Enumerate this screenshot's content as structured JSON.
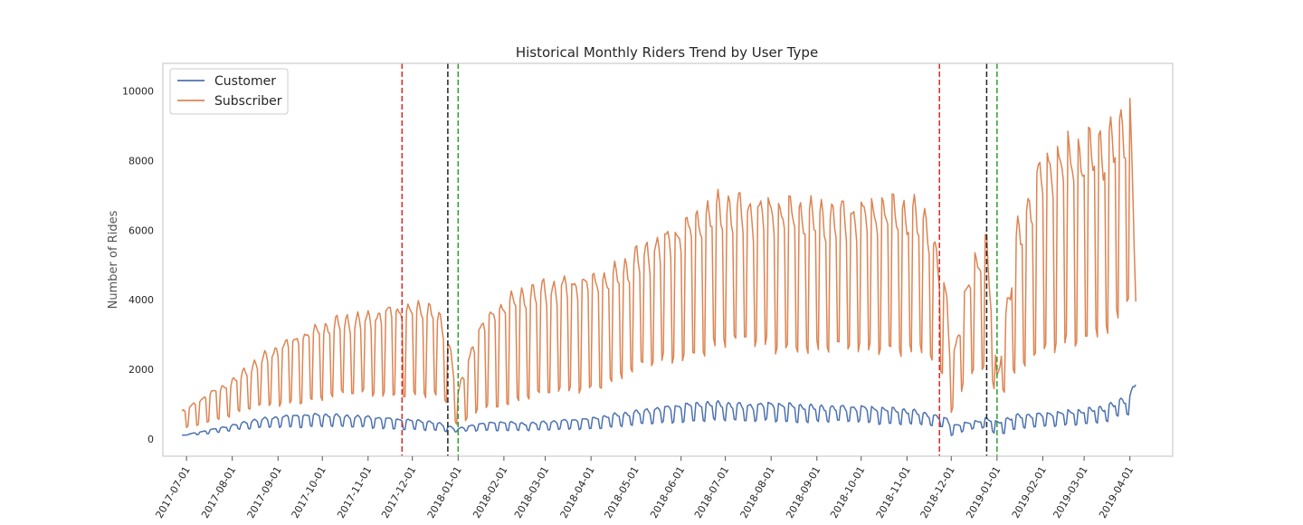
{
  "chart_data": {
    "type": "line",
    "title": "Historical Monthly Riders Trend by User Type",
    "xlabel": "",
    "ylabel": "Number of Rides",
    "x_range": [
      "2017-06-15",
      "2019-04-30"
    ],
    "ylim": [
      -500,
      10800
    ],
    "y_ticks": [
      0,
      2000,
      4000,
      6000,
      8000,
      10000
    ],
    "x_ticks": [
      "2017-07-01",
      "2017-08-01",
      "2017-09-01",
      "2017-10-01",
      "2017-11-01",
      "2017-12-01",
      "2018-01-01",
      "2018-02-01",
      "2018-03-01",
      "2018-04-01",
      "2018-05-01",
      "2018-06-01",
      "2018-07-01",
      "2018-08-01",
      "2018-09-01",
      "2018-10-01",
      "2018-11-01",
      "2018-12-01",
      "2019-01-01",
      "2019-02-01",
      "2019-03-01",
      "2019-04-01"
    ],
    "grid": false,
    "legend_position": "top-left",
    "colors": {
      "Customer": "#4c72b0",
      "Subscriber": "#dd8452"
    },
    "series": [
      {
        "name": "Customer",
        "color": "#4c72b0",
        "x": [
          "2017-06-28",
          "2017-07-15",
          "2017-08-01",
          "2017-08-15",
          "2017-09-01",
          "2017-09-15",
          "2017-10-01",
          "2017-10-15",
          "2017-11-01",
          "2017-11-15",
          "2017-12-01",
          "2017-12-15",
          "2017-12-25",
          "2018-01-01",
          "2018-01-15",
          "2018-02-01",
          "2018-02-15",
          "2018-03-01",
          "2018-03-15",
          "2018-04-01",
          "2018-04-15",
          "2018-05-01",
          "2018-05-15",
          "2018-06-01",
          "2018-06-15",
          "2018-07-01",
          "2018-07-15",
          "2018-08-01",
          "2018-08-15",
          "2018-09-01",
          "2018-09-15",
          "2018-10-01",
          "2018-10-15",
          "2018-11-01",
          "2018-11-15",
          "2018-11-28",
          "2018-12-01",
          "2018-12-15",
          "2018-12-25",
          "2019-01-01",
          "2019-01-15",
          "2019-02-01",
          "2019-02-15",
          "2019-03-01",
          "2019-03-15",
          "2019-03-28",
          "2019-04-01",
          "2019-04-05"
        ],
        "values": [
          100,
          250,
          400,
          550,
          650,
          700,
          720,
          680,
          650,
          600,
          550,
          500,
          380,
          300,
          450,
          500,
          450,
          500,
          550,
          600,
          700,
          800,
          900,
          1000,
          1050,
          1050,
          1000,
          1050,
          1000,
          950,
          950,
          950,
          900,
          850,
          750,
          600,
          400,
          500,
          600,
          500,
          700,
          750,
          800,
          850,
          950,
          1200,
          1300,
          1850
        ]
      },
      {
        "name": "Subscriber",
        "color": "#dd8452",
        "x": [
          "2017-06-28",
          "2017-07-15",
          "2017-08-01",
          "2017-08-15",
          "2017-09-01",
          "2017-09-15",
          "2017-10-01",
          "2017-10-15",
          "2017-11-01",
          "2017-11-15",
          "2017-12-01",
          "2017-12-15",
          "2017-12-25",
          "2018-01-01",
          "2018-01-15",
          "2018-02-01",
          "2018-02-15",
          "2018-03-01",
          "2018-03-15",
          "2018-04-01",
          "2018-04-15",
          "2018-05-01",
          "2018-05-15",
          "2018-06-01",
          "2018-06-15",
          "2018-07-01",
          "2018-07-15",
          "2018-08-01",
          "2018-08-15",
          "2018-09-01",
          "2018-09-15",
          "2018-10-01",
          "2018-10-15",
          "2018-11-01",
          "2018-11-15",
          "2018-11-28",
          "2018-12-01",
          "2018-12-15",
          "2018-12-25",
          "2019-01-01",
          "2019-01-15",
          "2019-02-01",
          "2019-02-15",
          "2019-03-01",
          "2019-03-15",
          "2019-03-28",
          "2019-04-01",
          "2019-04-05"
        ],
        "values": [
          800,
          1300,
          1700,
          2200,
          2700,
          3000,
          3300,
          3500,
          3600,
          3800,
          3850,
          3900,
          3000,
          1400,
          3300,
          4000,
          4300,
          4500,
          4600,
          4700,
          4800,
          5400,
          5800,
          6200,
          6600,
          7000,
          6900,
          6900,
          6800,
          6700,
          6800,
          6800,
          6900,
          6800,
          6600,
          4200,
          2200,
          5200,
          5800,
          1800,
          6200,
          8300,
          8500,
          8600,
          8900,
          9500,
          10300,
          4700
        ]
      }
    ],
    "envelope_low": {
      "Customer": [
        100,
        150,
        250,
        300,
        350,
        350,
        380,
        350,
        330,
        300,
        280,
        250,
        200,
        200,
        250,
        250,
        250,
        250,
        280,
        300,
        350,
        400,
        450,
        500,
        550,
        550,
        500,
        550,
        500,
        500,
        500,
        500,
        450,
        450,
        400,
        300,
        100,
        300,
        350,
        100,
        300,
        350,
        400,
        450,
        500,
        700,
        700,
        900
      ],
      "Subscriber": [
        300,
        500,
        700,
        900,
        1000,
        1100,
        1200,
        1300,
        1300,
        1300,
        1300,
        1300,
        1000,
        300,
        900,
        1000,
        1200,
        1300,
        1400,
        1500,
        1700,
        2000,
        2200,
        2400,
        2600,
        2800,
        2800,
        2700,
        2700,
        2600,
        2600,
        2600,
        2700,
        2600,
        2500,
        1500,
        800,
        2000,
        2200,
        1200,
        2000,
        2500,
        2800,
        3000,
        3200,
        3500,
        4300,
        4700
      ]
    },
    "reference_lines": [
      {
        "x": "2017-11-24",
        "color": "#d62728",
        "style": "dashed"
      },
      {
        "x": "2017-12-25",
        "color": "#222222",
        "style": "dashed"
      },
      {
        "x": "2018-01-01",
        "color": "#2ca02c",
        "style": "dashed"
      },
      {
        "x": "2018-11-23",
        "color": "#d62728",
        "style": "dashed"
      },
      {
        "x": "2018-12-25",
        "color": "#222222",
        "style": "dashed"
      },
      {
        "x": "2019-01-01",
        "color": "#2ca02c",
        "style": "dashed"
      }
    ]
  }
}
